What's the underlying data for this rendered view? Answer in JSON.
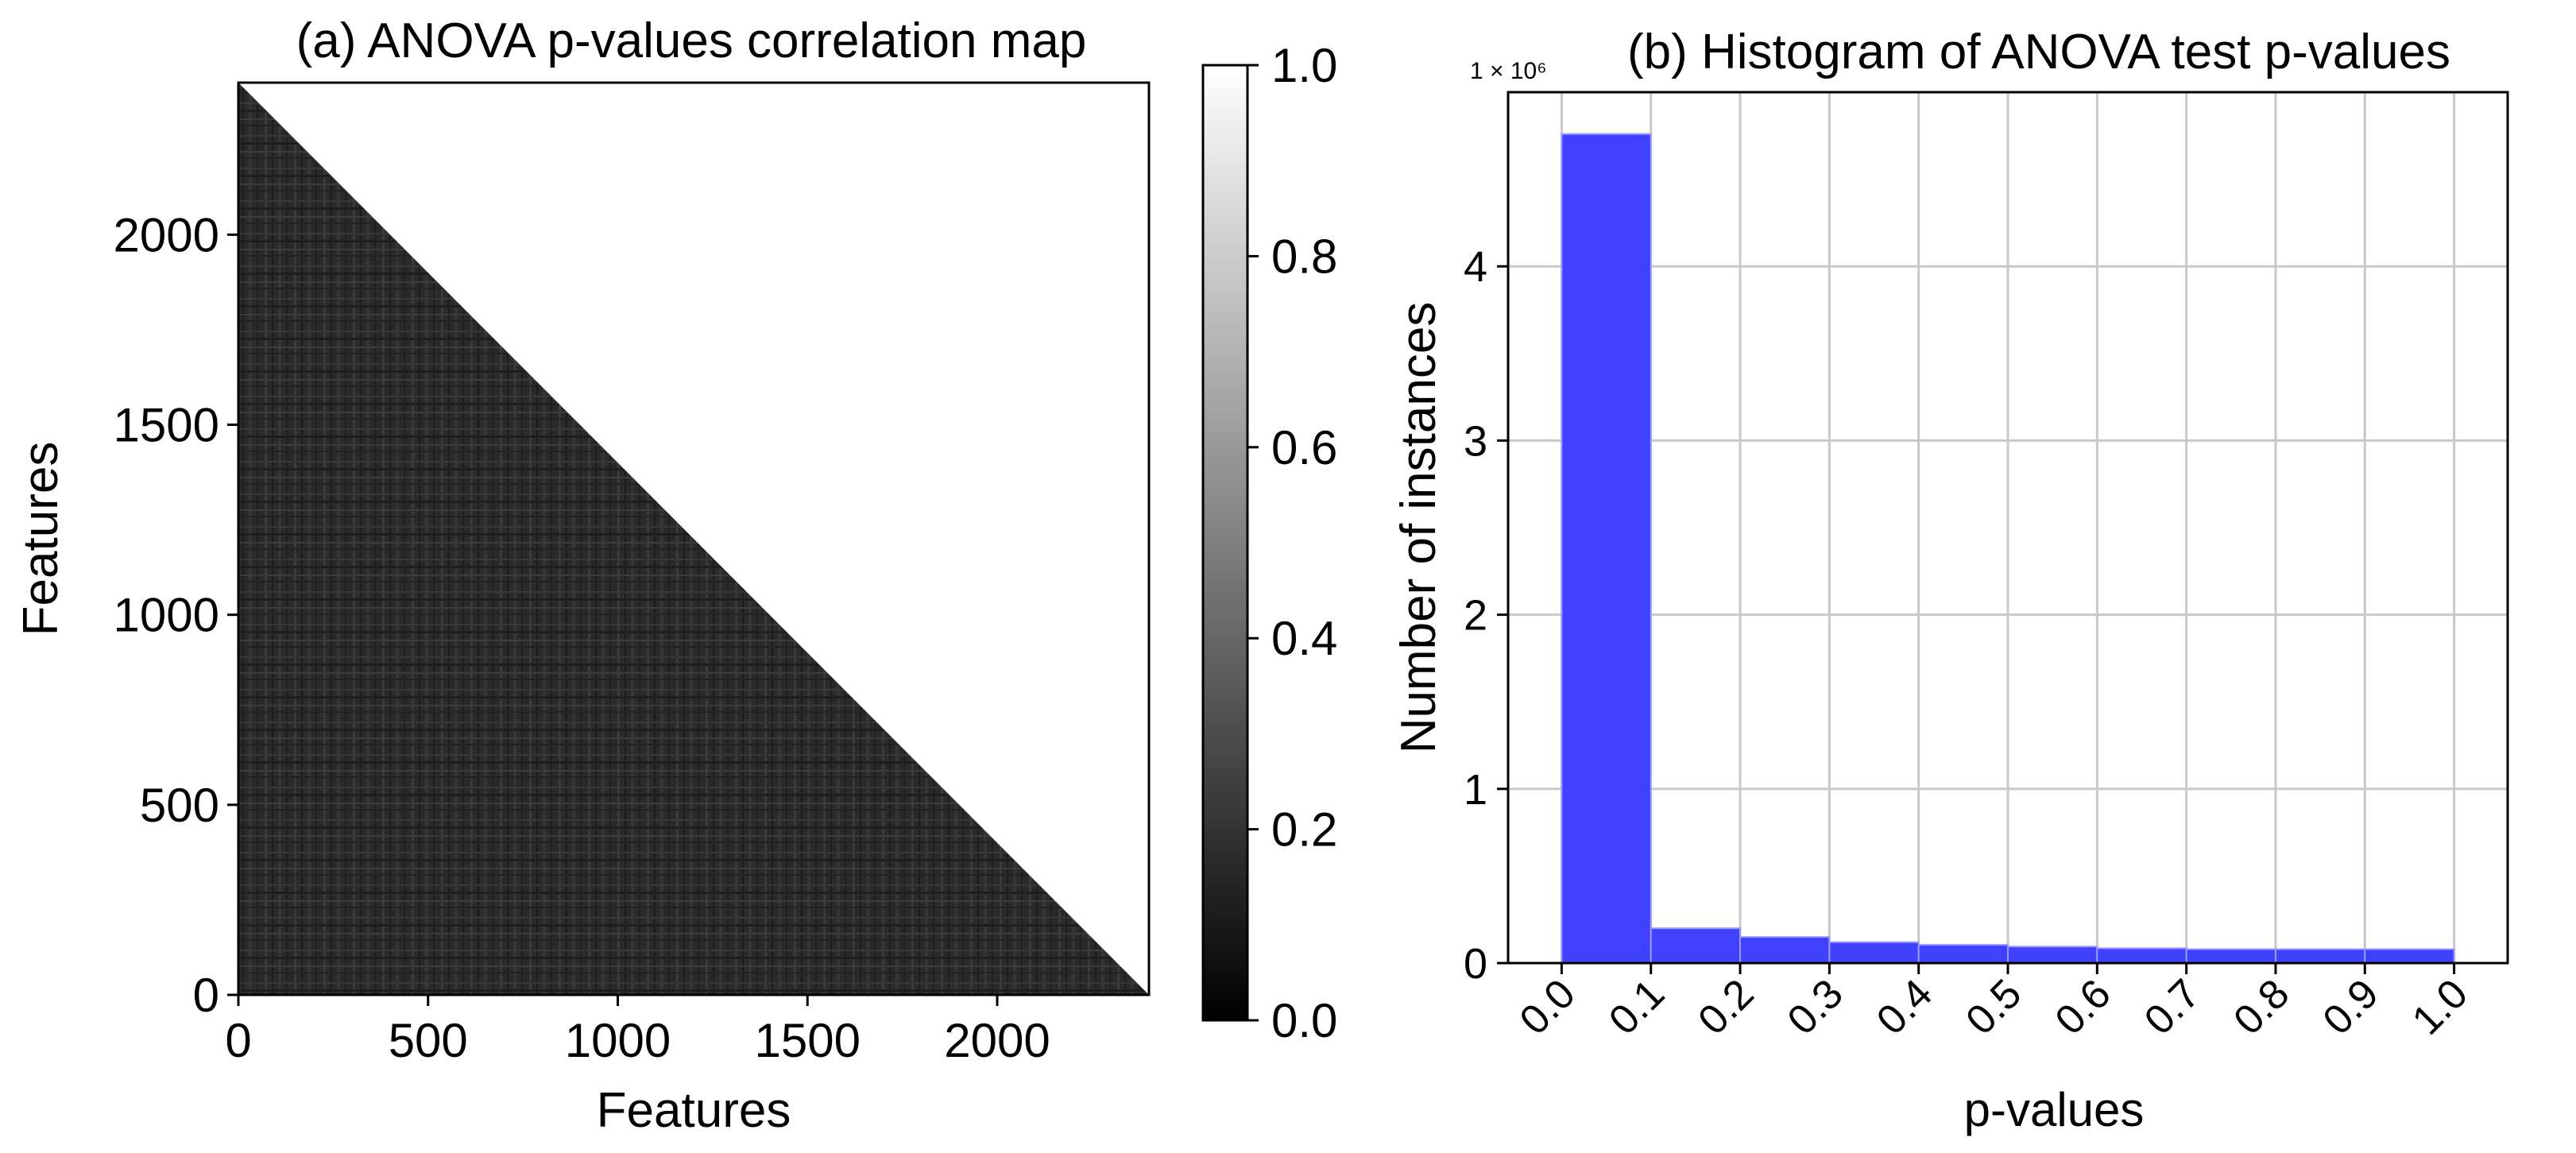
{
  "chart_data": [
    {
      "type": "heatmap",
      "title": "(a) ANOVA p-values correlation map",
      "xlabel": "Features",
      "ylabel": "Features",
      "xlim": [
        0,
        2400
      ],
      "ylim": [
        0,
        2400
      ],
      "x_ticks": [
        0,
        500,
        1000,
        1500,
        2000
      ],
      "y_ticks": [
        0,
        500,
        1000,
        1500,
        2000
      ],
      "x_tick_labels": [
        "0",
        "500",
        "1000",
        "1500",
        "2000"
      ],
      "y_tick_labels": [
        "0",
        "500",
        "1000",
        "1500",
        "2000"
      ],
      "mask": "upper triangle white (values above diagonal not shown)",
      "typical_value_range": [
        0.05,
        0.3
      ],
      "colormap": "gray",
      "colorbar": {
        "range": [
          0.0,
          1.0
        ],
        "ticks": [
          0.0,
          0.2,
          0.4,
          0.6,
          0.8,
          1.0
        ],
        "tick_labels": [
          "0.0",
          "0.2",
          "0.4",
          "0.6",
          "0.8",
          "1.0"
        ]
      }
    },
    {
      "type": "bar",
      "title": "(b) Histogram of ANOVA test p-values",
      "xlabel": "p-values",
      "ylabel": "Number of instances",
      "y_scale_label": "1 × 10⁶",
      "bin_edges": [
        0.0,
        0.1,
        0.2,
        0.3,
        0.4,
        0.5,
        0.6,
        0.7,
        0.8,
        0.9,
        1.0
      ],
      "values": [
        4.76,
        0.2,
        0.15,
        0.12,
        0.105,
        0.095,
        0.085,
        0.08,
        0.08,
        0.08
      ],
      "values_unit": "millions",
      "xlim": [
        -0.06,
        1.06
      ],
      "ylim": [
        0,
        5.0
      ],
      "x_ticks": [
        0.0,
        0.1,
        0.2,
        0.3,
        0.4,
        0.5,
        0.6,
        0.7,
        0.8,
        0.9,
        1.0
      ],
      "x_tick_labels": [
        "0.0",
        "0.1",
        "0.2",
        "0.3",
        "0.4",
        "0.5",
        "0.6",
        "0.7",
        "0.8",
        "0.9",
        "1.0"
      ],
      "y_ticks": [
        0,
        1,
        2,
        3,
        4
      ],
      "y_tick_labels": [
        "0",
        "1",
        "2",
        "3",
        "4"
      ],
      "grid": true,
      "bar_color": "#4040ff"
    }
  ]
}
